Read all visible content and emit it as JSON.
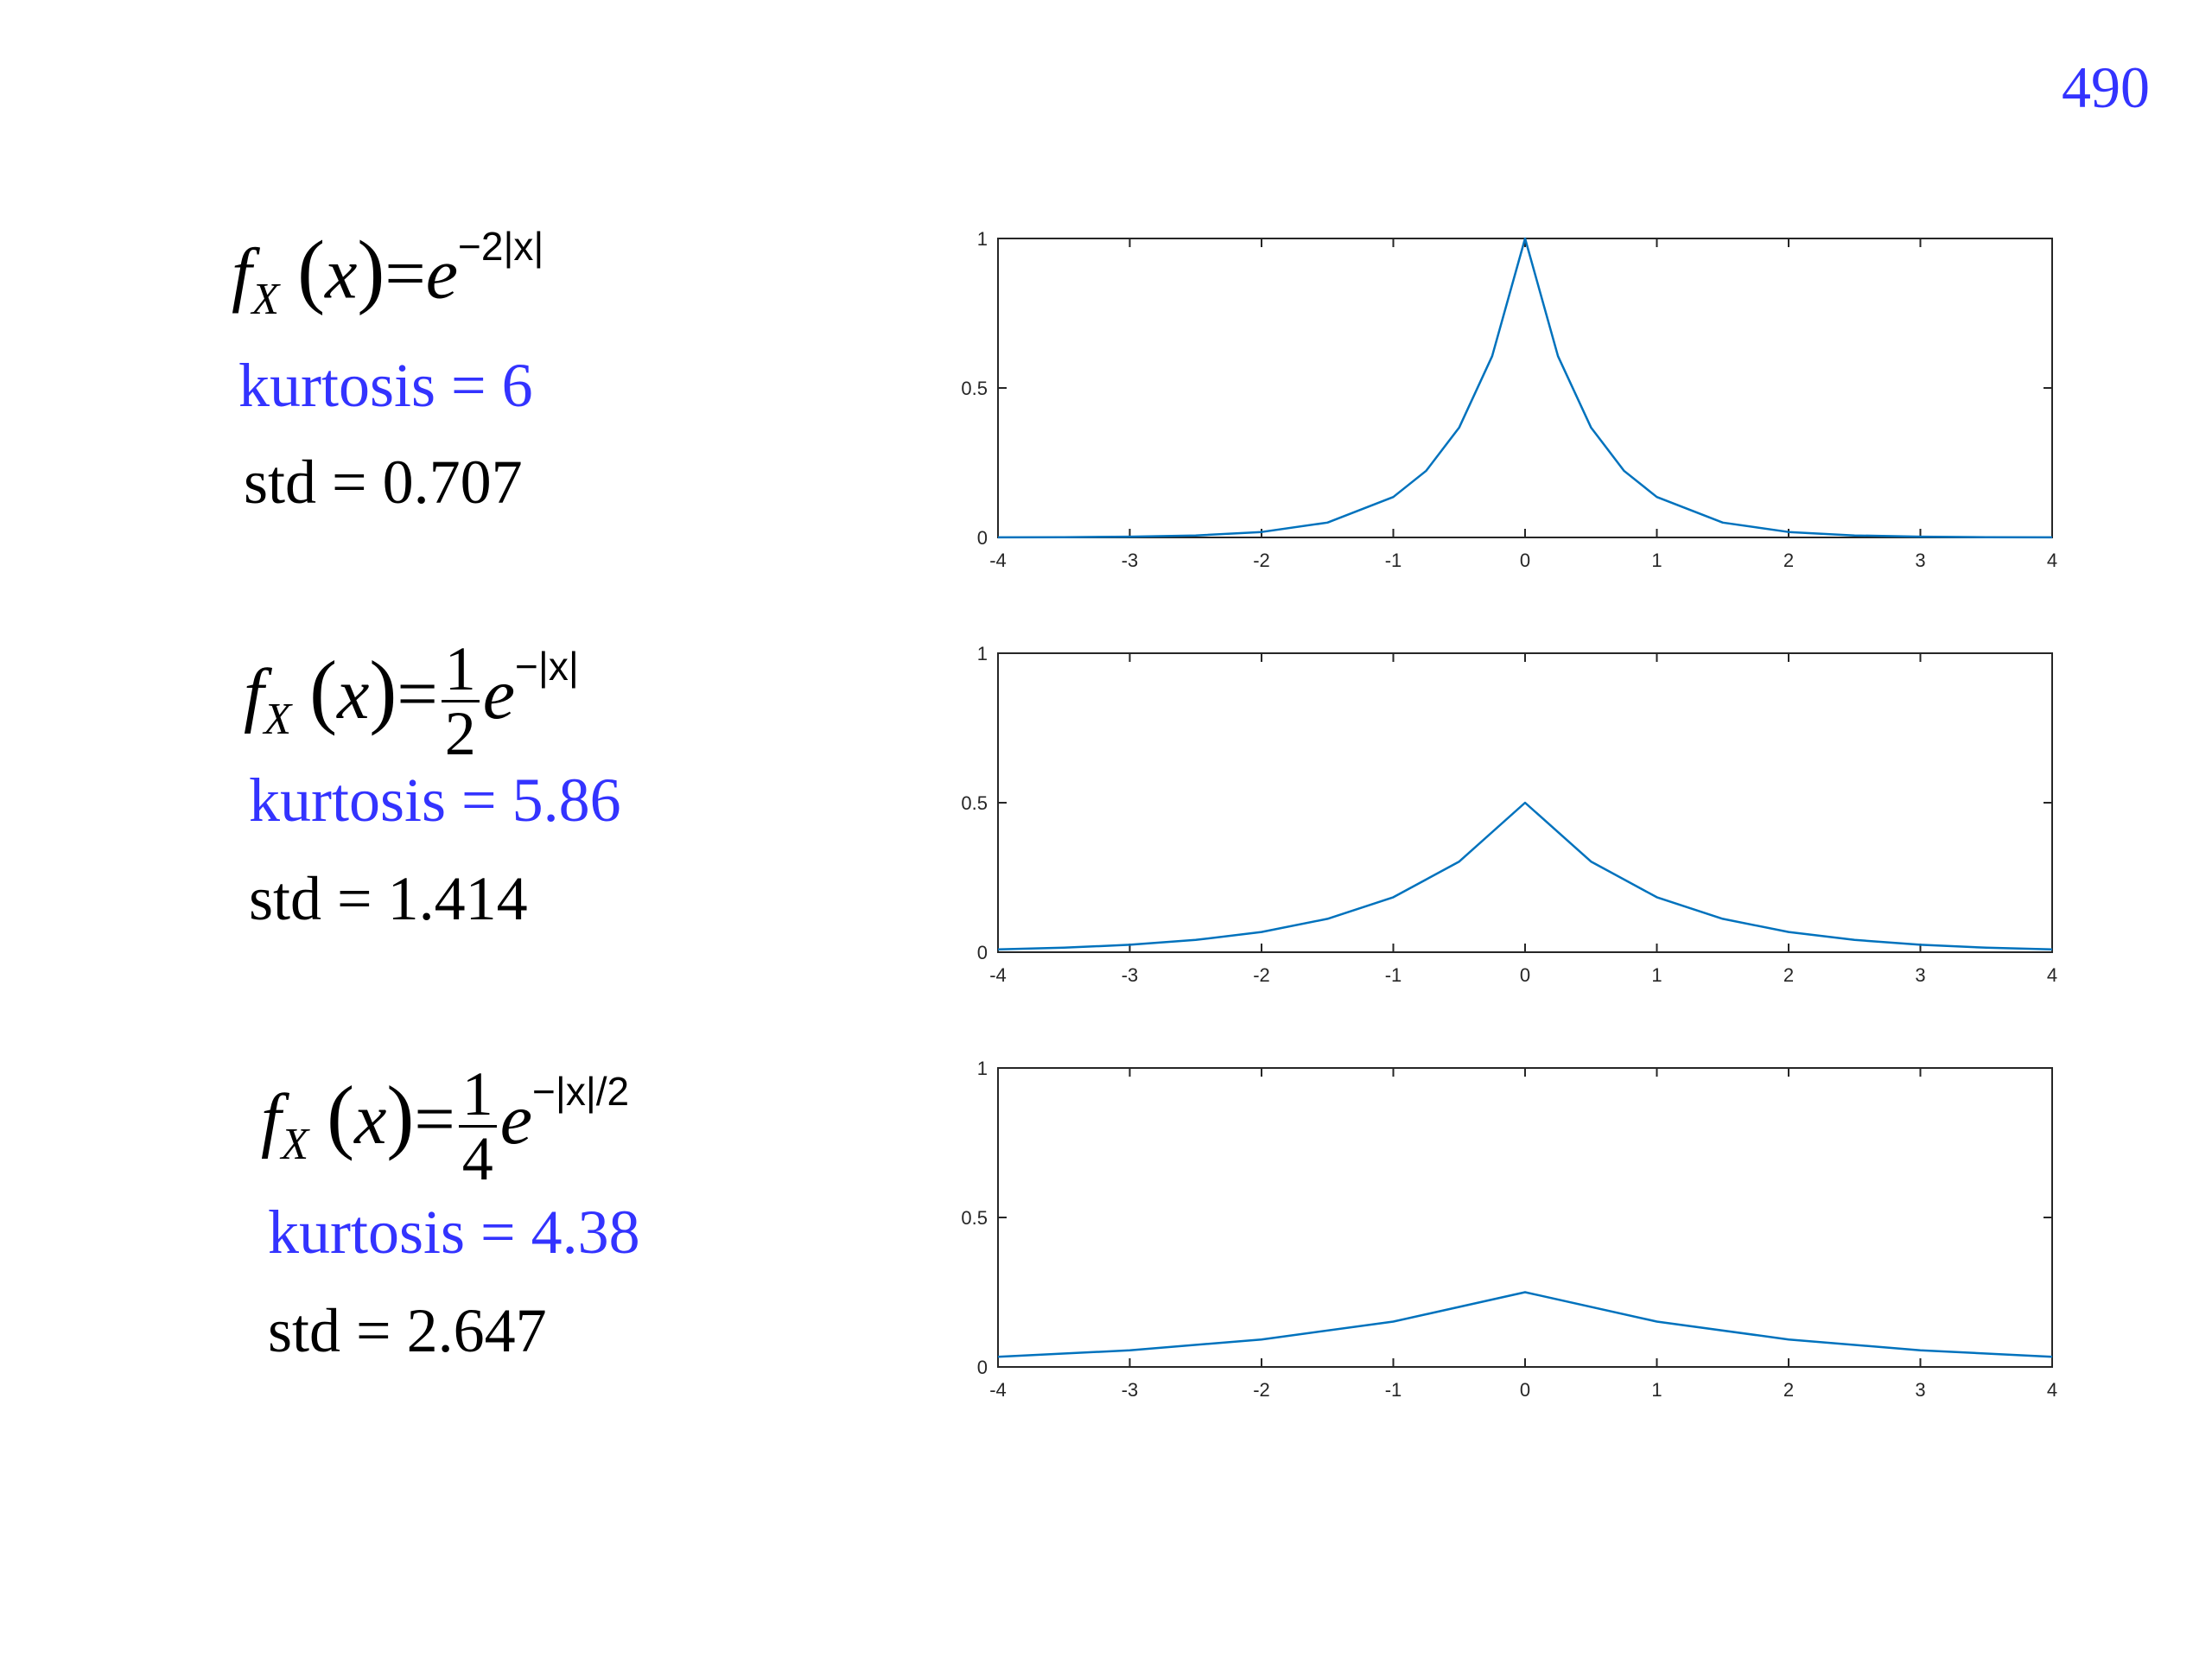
{
  "page_number": "490",
  "panels": [
    {
      "formula": {
        "func": "f",
        "sub": "X",
        "arg": "x",
        "coef_num": "",
        "coef_den": "",
        "exp": "−2|x|"
      },
      "kurtosis": "kurtosis = 6",
      "std": "std = 0.707"
    },
    {
      "formula": {
        "func": "f",
        "sub": "X",
        "arg": "x",
        "coef_num": "1",
        "coef_den": "2",
        "exp": "−|x|"
      },
      "kurtosis": "kurtosis = 5.86",
      "std": "std = 1.414"
    },
    {
      "formula": {
        "func": "f",
        "sub": "X",
        "arg": "x",
        "coef_num": "1",
        "coef_den": "4",
        "exp": "−|x|/2"
      },
      "kurtosis": "kurtosis = 4.38",
      "std": "std = 2.647"
    }
  ],
  "colors": {
    "line": "#0072bd",
    "axis": "#262626",
    "kurtosis": "#3333ff"
  },
  "chart_data": [
    {
      "type": "line",
      "x": [
        -4,
        -3.5,
        -3,
        -2.5,
        -2,
        -1.5,
        -1,
        -0.75,
        -0.5,
        -0.25,
        0,
        0.25,
        0.5,
        0.75,
        1,
        1.5,
        2,
        2.5,
        3,
        3.5,
        4
      ],
      "y": [
        0.0003,
        0.0009,
        0.0025,
        0.0067,
        0.0183,
        0.0498,
        0.1353,
        0.2231,
        0.3679,
        0.6065,
        1.0,
        0.6065,
        0.3679,
        0.2231,
        0.1353,
        0.0498,
        0.0183,
        0.0067,
        0.0025,
        0.0009,
        0.0003
      ],
      "xlim": [
        -4,
        4
      ],
      "ylim": [
        0,
        1
      ],
      "xticks": [
        "-4",
        "-3",
        "-2",
        "-1",
        "0",
        "1",
        "2",
        "3",
        "4"
      ],
      "yticks": [
        "0",
        "0.5",
        "1"
      ],
      "grid": false
    },
    {
      "type": "line",
      "x": [
        -4,
        -3.5,
        -3,
        -2.5,
        -2,
        -1.5,
        -1,
        -0.5,
        0,
        0.5,
        1,
        1.5,
        2,
        2.5,
        3,
        3.5,
        4
      ],
      "y": [
        0.0092,
        0.0151,
        0.0249,
        0.041,
        0.0677,
        0.1116,
        0.1839,
        0.3033,
        0.5,
        0.3033,
        0.1839,
        0.1116,
        0.0677,
        0.041,
        0.0249,
        0.0151,
        0.0092
      ],
      "xlim": [
        -4,
        4
      ],
      "ylim": [
        0,
        1
      ],
      "xticks": [
        "-4",
        "-3",
        "-2",
        "-1",
        "0",
        "1",
        "2",
        "3",
        "4"
      ],
      "yticks": [
        "0",
        "0.5",
        "1"
      ],
      "grid": false
    },
    {
      "type": "line",
      "x": [
        -4,
        -3,
        -2,
        -1,
        0,
        1,
        2,
        3,
        4
      ],
      "y": [
        0.0338,
        0.0558,
        0.092,
        0.1516,
        0.25,
        0.1516,
        0.092,
        0.0558,
        0.0338
      ],
      "xlim": [
        -4,
        4
      ],
      "ylim": [
        0,
        1
      ],
      "xticks": [
        "-4",
        "-3",
        "-2",
        "-1",
        "0",
        "1",
        "2",
        "3",
        "4"
      ],
      "yticks": [
        "0",
        "0.5",
        "1"
      ],
      "grid": false
    }
  ]
}
